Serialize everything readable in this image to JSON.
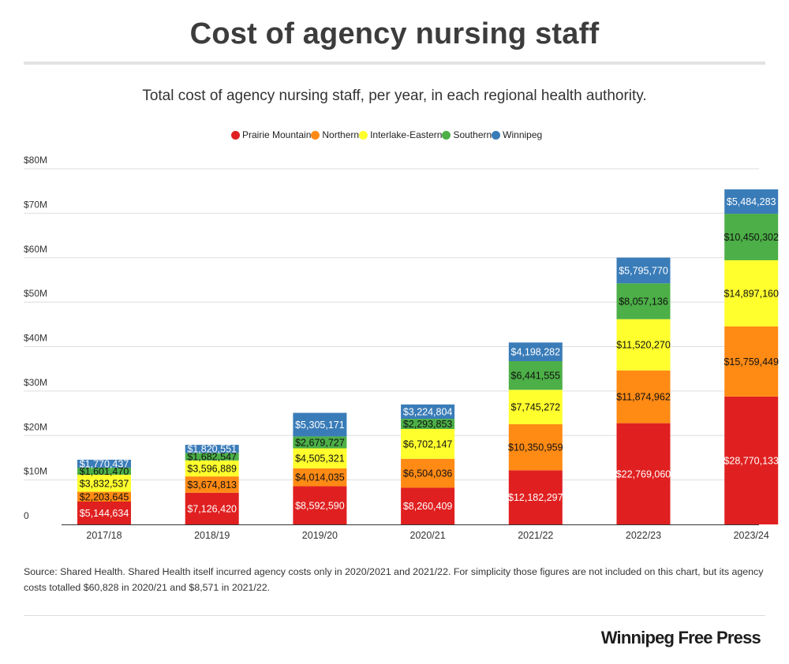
{
  "header": {
    "title": "Cost of agency nursing staff",
    "subtitle": "Total cost of agency nursing staff, per year, in each regional health authority."
  },
  "footer": {
    "source": "Source: Shared Health. Shared Health itself incurred agency costs only in 2020/2021 and 2021/22. For simplicity those figures are not included on this chart, but its agency costs totalled $60,828 in 2020/21 and $8,571 in 2021/22.",
    "brand": "Winnipeg Free Press"
  },
  "chart_data": {
    "type": "bar",
    "stacked": true,
    "categories": [
      "2017/18",
      "2018/19",
      "2019/20",
      "2020/21",
      "2021/22",
      "2022/23",
      "2023/24"
    ],
    "y_ticks": [
      "0",
      "$10M",
      "$20M",
      "$30M",
      "$40M",
      "$50M",
      "$60M",
      "$70M",
      "$80M"
    ],
    "ylim": [
      0,
      80000000
    ],
    "grid": true,
    "legend_position": "top",
    "series": [
      {
        "name": "Prairie Mountain",
        "color": "#e02020",
        "values": [
          5144634,
          7126420,
          8592590,
          8260409,
          12182297,
          22769060,
          28770133
        ],
        "labels": [
          "$5,144,634",
          "$7,126,420",
          "$8,592,590",
          "$8,260,409",
          "$12,182,297",
          "$22,769,060",
          "$28,770,133"
        ],
        "label_color": "#ffffff"
      },
      {
        "name": "Northern",
        "color": "#ff8a14",
        "values": [
          2203645,
          3674813,
          4014035,
          6504036,
          10350959,
          11874962,
          15759449
        ],
        "labels": [
          "$2,203,645",
          "$3,674,813",
          "$4,014,035",
          "$6,504,036",
          "$10,350,959",
          "$11,874,962",
          "$15,759,449"
        ],
        "label_color": "#111111"
      },
      {
        "name": "Interlake-Eastern",
        "color": "#ffff2e",
        "values": [
          3832537,
          3596889,
          4505321,
          6702147,
          7745272,
          11520270,
          14897160
        ],
        "labels": [
          "$3,832,537",
          "$3,596,889",
          "$4,505,321",
          "$6,702,147",
          "$7,745,272",
          "$11,520,270",
          "$14,897,160"
        ],
        "label_color": "#111111"
      },
      {
        "name": "Southern",
        "color": "#4caf47",
        "values": [
          1601470,
          1682547,
          2679727,
          2293853,
          6441555,
          8057136,
          10450302
        ],
        "labels": [
          "$1,601,470",
          "$1,682,547",
          "$2,679,727",
          "$2,293,853",
          "$6,441,555",
          "$8,057,136",
          "$10,450,302"
        ],
        "label_color": "#111111"
      },
      {
        "name": "Winnipeg",
        "color": "#3a7cb8",
        "values": [
          1770437,
          1820551,
          5305171,
          3224804,
          4198282,
          5795770,
          5484283
        ],
        "labels": [
          "$1,770,437",
          "$1,820,551",
          "$5,305,171",
          "$3,224,804",
          "$4,198,282",
          "$5,795,770",
          "$5,484,283"
        ],
        "label_color": "#ffffff"
      }
    ]
  }
}
